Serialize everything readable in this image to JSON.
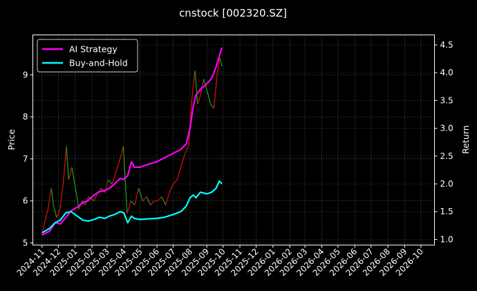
{
  "chart_data": {
    "type": "line",
    "title": "cnstock [002320.SZ]",
    "xlabel": "",
    "ylabel": "Price",
    "y2label": "Return",
    "grid": true,
    "legend": "top-left",
    "ylim": [
      4.95,
      9.95
    ],
    "y2lim": [
      0.9,
      4.68
    ],
    "yticks": [
      5,
      6,
      7,
      8,
      9
    ],
    "y2ticks": [
      1.0,
      1.5,
      2.0,
      2.5,
      3.0,
      3.5,
      4.0,
      4.5
    ],
    "x_tick_labels": [
      "2024-11",
      "2024-12",
      "2025-01",
      "2025-02",
      "2025-03",
      "2025-04",
      "2025-05",
      "2025-06",
      "2025-07",
      "2025-08",
      "2025-09",
      "2025-10",
      "2025-11",
      "2025-12",
      "2026-01",
      "2026-02",
      "2026-03",
      "2026-04",
      "2026-05",
      "2026-06",
      "2026-07",
      "2026-08",
      "2026-09",
      "2026-10"
    ],
    "price_points": [
      [
        "2024-11-01",
        5.2
      ],
      [
        "2024-11-06",
        5.5
      ],
      [
        "2024-11-12",
        5.8
      ],
      [
        "2024-11-18",
        6.3
      ],
      [
        "2024-11-22",
        5.9
      ],
      [
        "2024-11-28",
        5.6
      ],
      [
        "2024-12-04",
        5.8
      ],
      [
        "2024-12-10",
        6.4
      ],
      [
        "2024-12-16",
        7.3
      ],
      [
        "2024-12-20",
        6.5
      ],
      [
        "2024-12-26",
        6.8
      ],
      [
        "2025-01-03",
        6.2
      ],
      [
        "2025-01-08",
        5.8
      ],
      [
        "2025-01-14",
        6.0
      ],
      [
        "2025-01-20",
        5.9
      ],
      [
        "2025-01-26",
        6.1
      ],
      [
        "2025-02-05",
        6.0
      ],
      [
        "2025-02-12",
        6.2
      ],
      [
        "2025-02-18",
        6.3
      ],
      [
        "2025-02-25",
        6.2
      ],
      [
        "2025-03-03",
        6.5
      ],
      [
        "2025-03-10",
        6.4
      ],
      [
        "2025-03-18",
        6.7
      ],
      [
        "2025-03-25",
        7.0
      ],
      [
        "2025-03-31",
        7.3
      ],
      [
        "2025-04-07",
        5.7
      ],
      [
        "2025-04-14",
        6.0
      ],
      [
        "2025-04-21",
        5.9
      ],
      [
        "2025-04-28",
        6.3
      ],
      [
        "2025-05-06",
        6.0
      ],
      [
        "2025-05-13",
        6.1
      ],
      [
        "2025-05-20",
        5.9
      ],
      [
        "2025-05-27",
        6.0
      ],
      [
        "2025-06-03",
        6.0
      ],
      [
        "2025-06-10",
        6.1
      ],
      [
        "2025-06-17",
        5.9
      ],
      [
        "2025-06-24",
        6.2
      ],
      [
        "2025-07-01",
        6.4
      ],
      [
        "2025-07-08",
        6.5
      ],
      [
        "2025-07-15",
        6.8
      ],
      [
        "2025-07-22",
        7.1
      ],
      [
        "2025-07-29",
        7.3
      ],
      [
        "2025-08-05",
        8.5
      ],
      [
        "2025-08-10",
        9.1
      ],
      [
        "2025-08-15",
        8.3
      ],
      [
        "2025-08-20",
        8.5
      ],
      [
        "2025-08-26",
        8.9
      ],
      [
        "2025-09-02",
        8.6
      ],
      [
        "2025-09-08",
        8.3
      ],
      [
        "2025-09-14",
        8.2
      ],
      [
        "2025-09-20",
        9.0
      ],
      [
        "2025-09-25",
        9.4
      ],
      [
        "2025-09-29",
        9.2
      ]
    ],
    "series": [
      {
        "name": "AI Strategy",
        "color": "#ff00ff",
        "points": [
          [
            "2024-11-01",
            1.08
          ],
          [
            "2024-11-15",
            1.15
          ],
          [
            "2024-11-25",
            1.3
          ],
          [
            "2024-12-05",
            1.28
          ],
          [
            "2024-12-15",
            1.4
          ],
          [
            "2024-12-25",
            1.52
          ],
          [
            "2025-01-05",
            1.58
          ],
          [
            "2025-01-15",
            1.66
          ],
          [
            "2025-01-25",
            1.7
          ],
          [
            "2025-02-05",
            1.8
          ],
          [
            "2025-02-15",
            1.86
          ],
          [
            "2025-02-25",
            1.88
          ],
          [
            "2025-03-05",
            1.92
          ],
          [
            "2025-03-15",
            2.0
          ],
          [
            "2025-03-25",
            2.1
          ],
          [
            "2025-04-01",
            2.08
          ],
          [
            "2025-04-08",
            2.15
          ],
          [
            "2025-04-15",
            2.4
          ],
          [
            "2025-04-20",
            2.3
          ],
          [
            "2025-05-01",
            2.3
          ],
          [
            "2025-05-15",
            2.35
          ],
          [
            "2025-06-01",
            2.4
          ],
          [
            "2025-06-15",
            2.47
          ],
          [
            "2025-07-01",
            2.55
          ],
          [
            "2025-07-15",
            2.62
          ],
          [
            "2025-07-25",
            2.72
          ],
          [
            "2025-08-01",
            3.0
          ],
          [
            "2025-08-07",
            3.4
          ],
          [
            "2025-08-12",
            3.6
          ],
          [
            "2025-08-20",
            3.7
          ],
          [
            "2025-09-01",
            3.8
          ],
          [
            "2025-09-10",
            3.9
          ],
          [
            "2025-09-18",
            4.1
          ],
          [
            "2025-09-24",
            4.3
          ],
          [
            "2025-09-29",
            4.45
          ]
        ]
      },
      {
        "name": "Buy-and-Hold",
        "color": "#00ffff",
        "points": [
          [
            "2024-11-01",
            1.12
          ],
          [
            "2024-11-15",
            1.2
          ],
          [
            "2024-11-25",
            1.3
          ],
          [
            "2024-12-05",
            1.35
          ],
          [
            "2024-12-15",
            1.48
          ],
          [
            "2024-12-25",
            1.5
          ],
          [
            "2025-01-05",
            1.42
          ],
          [
            "2025-01-15",
            1.35
          ],
          [
            "2025-01-25",
            1.33
          ],
          [
            "2025-02-05",
            1.36
          ],
          [
            "2025-02-15",
            1.4
          ],
          [
            "2025-02-25",
            1.38
          ],
          [
            "2025-03-05",
            1.42
          ],
          [
            "2025-03-15",
            1.45
          ],
          [
            "2025-03-25",
            1.5
          ],
          [
            "2025-04-01",
            1.48
          ],
          [
            "2025-04-08",
            1.3
          ],
          [
            "2025-04-15",
            1.42
          ],
          [
            "2025-04-20",
            1.38
          ],
          [
            "2025-05-01",
            1.36
          ],
          [
            "2025-05-15",
            1.37
          ],
          [
            "2025-06-01",
            1.38
          ],
          [
            "2025-06-15",
            1.4
          ],
          [
            "2025-07-01",
            1.45
          ],
          [
            "2025-07-15",
            1.5
          ],
          [
            "2025-07-25",
            1.6
          ],
          [
            "2025-08-01",
            1.75
          ],
          [
            "2025-08-07",
            1.8
          ],
          [
            "2025-08-12",
            1.75
          ],
          [
            "2025-08-20",
            1.85
          ],
          [
            "2025-09-01",
            1.82
          ],
          [
            "2025-09-10",
            1.85
          ],
          [
            "2025-09-18",
            1.92
          ],
          [
            "2025-09-24",
            2.05
          ],
          [
            "2025-09-29",
            2.0
          ]
        ]
      }
    ]
  }
}
